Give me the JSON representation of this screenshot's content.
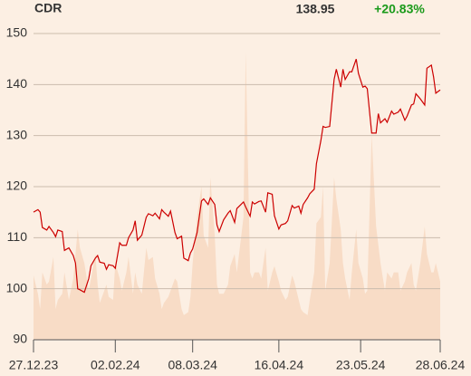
{
  "chart_data": {
    "type": "line",
    "title": "CDR",
    "last_price": "138.95",
    "change": "+20.83%",
    "change_color": "#1a9a1a",
    "x": [
      "2023-12-27",
      "2023-12-29",
      "2023-12-30",
      "2023-12-31",
      "2024-01-02",
      "2024-01-03",
      "2024-01-05",
      "2024-01-06",
      "2024-01-07",
      "2024-01-09",
      "2024-01-10",
      "2024-01-12",
      "2024-01-14",
      "2024-01-15",
      "2024-01-16",
      "2024-01-17",
      "2024-01-19",
      "2024-01-21",
      "2024-01-22",
      "2024-01-24",
      "2024-01-25",
      "2024-01-26",
      "2024-01-28",
      "2024-01-29",
      "2024-01-30",
      "2024-02-01",
      "2024-02-02",
      "2024-02-04",
      "2024-02-05",
      "2024-02-07",
      "2024-02-08",
      "2024-02-10",
      "2024-02-11",
      "2024-02-12",
      "2024-02-14",
      "2024-02-16",
      "2024-02-17",
      "2024-02-19",
      "2024-02-20",
      "2024-02-22",
      "2024-02-23",
      "2024-02-24",
      "2024-02-26",
      "2024-02-27",
      "2024-02-29",
      "2024-03-01",
      "2024-03-03",
      "2024-03-04",
      "2024-03-06",
      "2024-03-07",
      "2024-03-08",
      "2024-03-10",
      "2024-03-12",
      "2024-03-13",
      "2024-03-15",
      "2024-03-16",
      "2024-03-18",
      "2024-03-19",
      "2024-03-20",
      "2024-03-22",
      "2024-03-24",
      "2024-03-25",
      "2024-03-27",
      "2024-03-28",
      "2024-03-31",
      "2024-04-01",
      "2024-04-03",
      "2024-04-04",
      "2024-04-05",
      "2024-04-07",
      "2024-04-08",
      "2024-04-10",
      "2024-04-11",
      "2024-04-13",
      "2024-04-14",
      "2024-04-16",
      "2024-04-17",
      "2024-04-19",
      "2024-04-20",
      "2024-04-22",
      "2024-04-23",
      "2024-04-25",
      "2024-04-26",
      "2024-04-27",
      "2024-04-29",
      "2024-04-30",
      "2024-05-02",
      "2024-05-03",
      "2024-05-05",
      "2024-05-06",
      "2024-05-07",
      "2024-05-09",
      "2024-05-11",
      "2024-05-12",
      "2024-05-14",
      "2024-05-15",
      "2024-05-16",
      "2024-05-18",
      "2024-05-19",
      "2024-05-21",
      "2024-05-22",
      "2024-05-24",
      "2024-05-25",
      "2024-05-26",
      "2024-05-28",
      "2024-05-30",
      "2024-05-31",
      "2024-06-01",
      "2024-06-03",
      "2024-06-04",
      "2024-06-06",
      "2024-06-07",
      "2024-06-09",
      "2024-06-10",
      "2024-06-12",
      "2024-06-13",
      "2024-06-15",
      "2024-06-16",
      "2024-06-17",
      "2024-06-19",
      "2024-06-21",
      "2024-06-22",
      "2024-06-24",
      "2024-06-25",
      "2024-06-26",
      "2024-06-28"
    ],
    "series": [
      {
        "color": "#cc0000",
        "values": [
          115,
          115.5,
          115,
          112,
          111.5,
          112.2,
          111,
          110.2,
          111.5,
          111.2,
          107.5,
          108,
          106.5,
          105,
          100,
          99.8,
          99.3,
          102,
          104.5,
          106,
          106.5,
          105.2,
          105,
          103.8,
          104.7,
          104.5,
          104,
          109,
          108.5,
          108.5,
          110,
          111.5,
          113.3,
          109.5,
          110.5,
          114,
          114.7,
          114.3,
          114.8,
          113.7,
          115.5,
          115,
          114.2,
          115.2,
          111,
          109.8,
          110.3,
          106,
          105.5,
          107,
          107.8,
          111,
          117.2,
          117.6,
          116.5,
          117.8,
          116.5,
          112.5,
          111.2,
          113.5,
          114.8,
          115.3,
          113,
          115.7,
          117,
          116,
          114.2,
          117,
          116.6,
          117.1,
          117.2,
          115,
          118.8,
          118.5,
          114.3,
          111.7,
          112.5,
          112.8,
          113.3,
          116.3,
          115.8,
          116.2,
          114.8,
          116.5,
          117.8,
          118.6,
          119.5,
          124.5,
          129,
          131.8,
          131.6,
          131.8,
          141,
          143,
          139.5,
          143,
          141,
          142.5,
          142.5,
          145,
          142.2,
          139.5,
          139.7,
          139.2,
          130.5,
          130.5,
          134.3,
          132.5,
          133.3,
          132.6,
          134.8,
          134.2,
          134.6,
          135.2,
          133,
          133.8,
          136,
          136.2,
          138.2,
          137.2,
          136,
          143.2,
          143.8,
          141.5,
          138.3,
          138.95
        ]
      }
    ],
    "volume": {
      "color": "#f8dcc6",
      "values": [
        21,
        15,
        10,
        22,
        18,
        19,
        27,
        10,
        13,
        15,
        22,
        13,
        20,
        28,
        36,
        30,
        25,
        16,
        20,
        28,
        18,
        12,
        16,
        18,
        14,
        13,
        25,
        20,
        16,
        22,
        27,
        15,
        22,
        18,
        15,
        30,
        26,
        27,
        20,
        15,
        10,
        12,
        14,
        16,
        20,
        19,
        10,
        8,
        9,
        14,
        25,
        40,
        50,
        34,
        30,
        53,
        34,
        18,
        15,
        15,
        18,
        24,
        28,
        22,
        40,
        94,
        22,
        20,
        22,
        22,
        20,
        30,
        16,
        22,
        24,
        19,
        16,
        13,
        14,
        21,
        19,
        13,
        10,
        9,
        8,
        13,
        22,
        38,
        40,
        50,
        16,
        25,
        53,
        46,
        36,
        25,
        20,
        13,
        22,
        36,
        25,
        20,
        15,
        16,
        67,
        37,
        31,
        25,
        16,
        22,
        20,
        22,
        22,
        16,
        19,
        22,
        25,
        18,
        16,
        25,
        37,
        28,
        22,
        22,
        25,
        19
      ]
    },
    "xlim": [
      "2023-12-27",
      "2024-06-28"
    ],
    "xticks": [
      {
        "value": "2023-12-27",
        "label": "27.12.23"
      },
      {
        "value": "2024-02-02",
        "label": "02.02.24"
      },
      {
        "value": "2024-03-08",
        "label": "08.03.24"
      },
      {
        "value": "2024-04-16",
        "label": "16.04.24"
      },
      {
        "value": "2024-05-23",
        "label": "23.05.24"
      },
      {
        "value": "2024-06-28",
        "label": "28.06.24"
      }
    ],
    "ylim": [
      90,
      150
    ],
    "yticks": [
      90,
      100,
      110,
      120,
      130,
      140,
      150
    ],
    "grid": true
  }
}
